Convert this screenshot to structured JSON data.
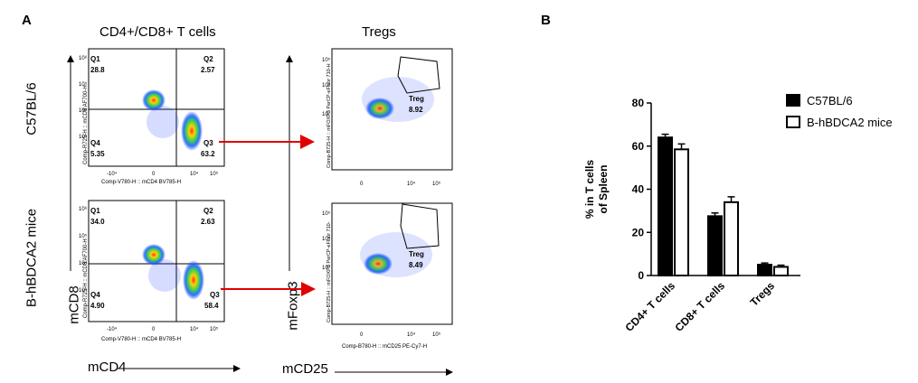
{
  "figure": {
    "panel_a_label": "A",
    "panel_b_label": "B",
    "col1_title": "CD4+/CD8+ T cells",
    "col2_title": "Tregs",
    "row1_label": "C57BL/6",
    "row2_label": "B-hBDCA2 mice",
    "y_axis_arrow_label": "mCD8",
    "x_axis_arrow_label_1": "mCD4",
    "y_axis_arrow_label_2": "mFoxp3",
    "x_axis_arrow_label_2": "mCD25"
  },
  "flow_plots": {
    "cd4cd8_xlabel": "Comp-V780-H :: mCD4 BV785-H",
    "cd4cd8_ylabel": "Comp-R725-H :: mCD8 AF700-H",
    "treg_ylabel_top": "Comp-B725-H :: mFOXP3 PerCP-eFluor 710-H",
    "treg_ylabel_bottom": "Comp-B725-H :: mFOXP3 PerCP-eFluor 710-",
    "treg_xlabel_bottom": "Comp-B780-H :: mCD25 PE-Cy7-H",
    "quadrant_labels": [
      "Q1",
      "Q2",
      "Q3",
      "Q4"
    ],
    "treg_gate_label": "Treg",
    "ticks_x_cd4": [
      "-10⁴",
      "0",
      "10⁴",
      "10⁵"
    ],
    "ticks_y_cd8": [
      "10⁶",
      "10⁵",
      "10⁴",
      "10³"
    ],
    "ticks_x_cd25": [
      "0",
      "10⁴",
      "10⁵"
    ],
    "ticks_y_foxp3": [
      "10⁵",
      "10⁴",
      "10³"
    ],
    "c57": {
      "q1": "28.8",
      "q2": "2.57",
      "q3": "63.2",
      "q4": "5.35",
      "treg": "8.92"
    },
    "hbdca2": {
      "q1": "34.0",
      "q2": "2.63",
      "q3": "58.4",
      "q4": "4.90",
      "treg": "8.49"
    }
  },
  "chart_data": {
    "type": "bar",
    "categories": [
      "CD4+ T cells",
      "CD8+ T cells",
      "Tregs"
    ],
    "series": [
      {
        "name": "C57BL/6",
        "values": [
          64,
          27.5,
          5
        ],
        "errors": [
          1.5,
          1.5,
          0.8
        ],
        "color": "#000000"
      },
      {
        "name": "B-hBDCA2 mice",
        "values": [
          58.5,
          34,
          4
        ],
        "errors": [
          2.5,
          2.5,
          0.8
        ],
        "color": "#ffffff"
      }
    ],
    "ylabel": "% in T cells of Spleen",
    "ylabel_line1": "% in T cells",
    "ylabel_line2": "of Spleen",
    "ylim": [
      0,
      80
    ],
    "yticks": [
      "0",
      "20",
      "40",
      "60",
      "80"
    ],
    "legend_position": "top-right"
  }
}
